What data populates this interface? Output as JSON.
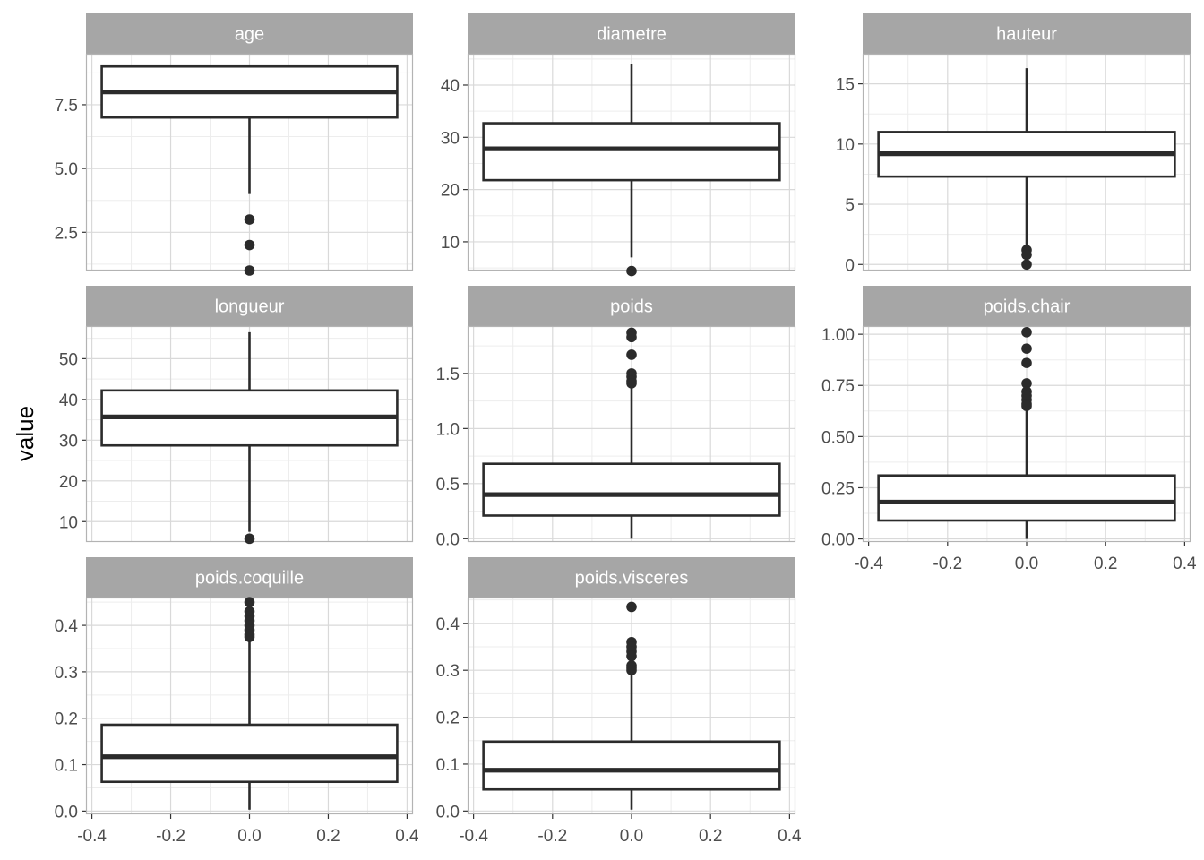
{
  "chart_data": {
    "type": "boxplot",
    "layout": "facet_wrap",
    "facet_columns": 3,
    "ylabel": "value",
    "xlabel": "",
    "x_ticks": [
      "-0.4",
      "-0.2",
      "0.0",
      "0.2",
      "0.4"
    ],
    "x_tick_values": [
      -0.4,
      -0.2,
      0.0,
      0.2,
      0.4
    ],
    "xlim": [
      -0.415,
      0.415
    ],
    "box_x_range": [
      -0.375,
      0.375
    ],
    "free_y_scales": true,
    "grid": true,
    "colors": {
      "strip": "#a6a6a6",
      "box_line": "#2b2b2b",
      "grid_major": "#d9d9d9",
      "grid_minor": "#ededed",
      "panel_border": "#b3b3b3"
    },
    "facets": [
      {
        "name": "age",
        "ylim": [
          1.0,
          9.5
        ],
        "y_ticks": [
          2.5,
          5.0,
          7.5
        ],
        "y_tick_labels": [
          "2.5",
          "5.0",
          "7.5"
        ],
        "box": {
          "min": 4.0,
          "q1": 7.0,
          "median": 8.0,
          "q3": 9.0,
          "max": 9.0
        },
        "outliers": [
          3.0,
          2.0,
          1.0
        ]
      },
      {
        "name": "diametre",
        "ylim": [
          4.5,
          46.0
        ],
        "y_ticks": [
          10,
          20,
          30,
          40
        ],
        "y_tick_labels": [
          "10",
          "20",
          "30",
          "40"
        ],
        "box": {
          "min": 7.0,
          "q1": 21.8,
          "median": 27.8,
          "q3": 32.7,
          "max": 44.0
        },
        "outliers": [
          4.4
        ]
      },
      {
        "name": "hauteur",
        "ylim": [
          -0.5,
          17.5
        ],
        "y_ticks": [
          0,
          5,
          10,
          15
        ],
        "y_tick_labels": [
          "0",
          "5",
          "10",
          "15"
        ],
        "box": {
          "min": 1.5,
          "q1": 7.3,
          "median": 9.2,
          "q3": 11.0,
          "max": 16.3
        },
        "outliers": [
          1.2,
          0.8,
          0.0
        ]
      },
      {
        "name": "longueur",
        "ylim": [
          5.0,
          58.0
        ],
        "y_ticks": [
          10,
          20,
          30,
          40,
          50
        ],
        "y_tick_labels": [
          "10",
          "20",
          "30",
          "40",
          "50"
        ],
        "box": {
          "min": 7.5,
          "q1": 28.7,
          "median": 35.7,
          "q3": 42.2,
          "max": 56.5
        },
        "outliers": [
          5.8
        ]
      },
      {
        "name": "poids",
        "ylim": [
          -0.03,
          1.93
        ],
        "y_ticks": [
          0.0,
          0.5,
          1.0,
          1.5
        ],
        "y_tick_labels": [
          "0.0",
          "0.5",
          "1.0",
          "1.5"
        ],
        "box": {
          "min": 0.0,
          "q1": 0.21,
          "median": 0.4,
          "q3": 0.68,
          "max": 1.4
        },
        "outliers": [
          1.87,
          1.83,
          1.67,
          1.5,
          1.47,
          1.43,
          1.41
        ]
      },
      {
        "name": "poids.chair",
        "ylim": [
          -0.015,
          1.04
        ],
        "y_ticks": [
          0.0,
          0.25,
          0.5,
          0.75,
          1.0
        ],
        "y_tick_labels": [
          "0.00",
          "0.25",
          "0.50",
          "0.75",
          "1.00"
        ],
        "box": {
          "min": 0.0,
          "q1": 0.09,
          "median": 0.18,
          "q3": 0.31,
          "max": 0.64
        },
        "outliers": [
          1.01,
          0.93,
          0.86,
          0.76,
          0.72,
          0.7,
          0.68,
          0.66,
          0.65
        ]
      },
      {
        "name": "poids.coquille",
        "ylim": [
          -0.007,
          0.46
        ],
        "y_ticks": [
          0.0,
          0.1,
          0.2,
          0.3,
          0.4
        ],
        "y_tick_labels": [
          "0.0",
          "0.1",
          "0.2",
          "0.3",
          "0.4"
        ],
        "box": {
          "min": 0.003,
          "q1": 0.063,
          "median": 0.117,
          "q3": 0.186,
          "max": 0.37
        },
        "outliers": [
          0.45,
          0.43,
          0.42,
          0.41,
          0.4,
          0.39,
          0.38,
          0.375
        ]
      },
      {
        "name": "poids.visceres",
        "ylim": [
          -0.007,
          0.455
        ],
        "y_ticks": [
          0.0,
          0.1,
          0.2,
          0.3,
          0.4
        ],
        "y_tick_labels": [
          "0.0",
          "0.1",
          "0.2",
          "0.3",
          "0.4"
        ],
        "box": {
          "min": 0.003,
          "q1": 0.046,
          "median": 0.087,
          "q3": 0.148,
          "max": 0.298
        },
        "outliers": [
          0.435,
          0.36,
          0.35,
          0.34,
          0.33,
          0.31,
          0.305,
          0.3
        ]
      }
    ]
  }
}
